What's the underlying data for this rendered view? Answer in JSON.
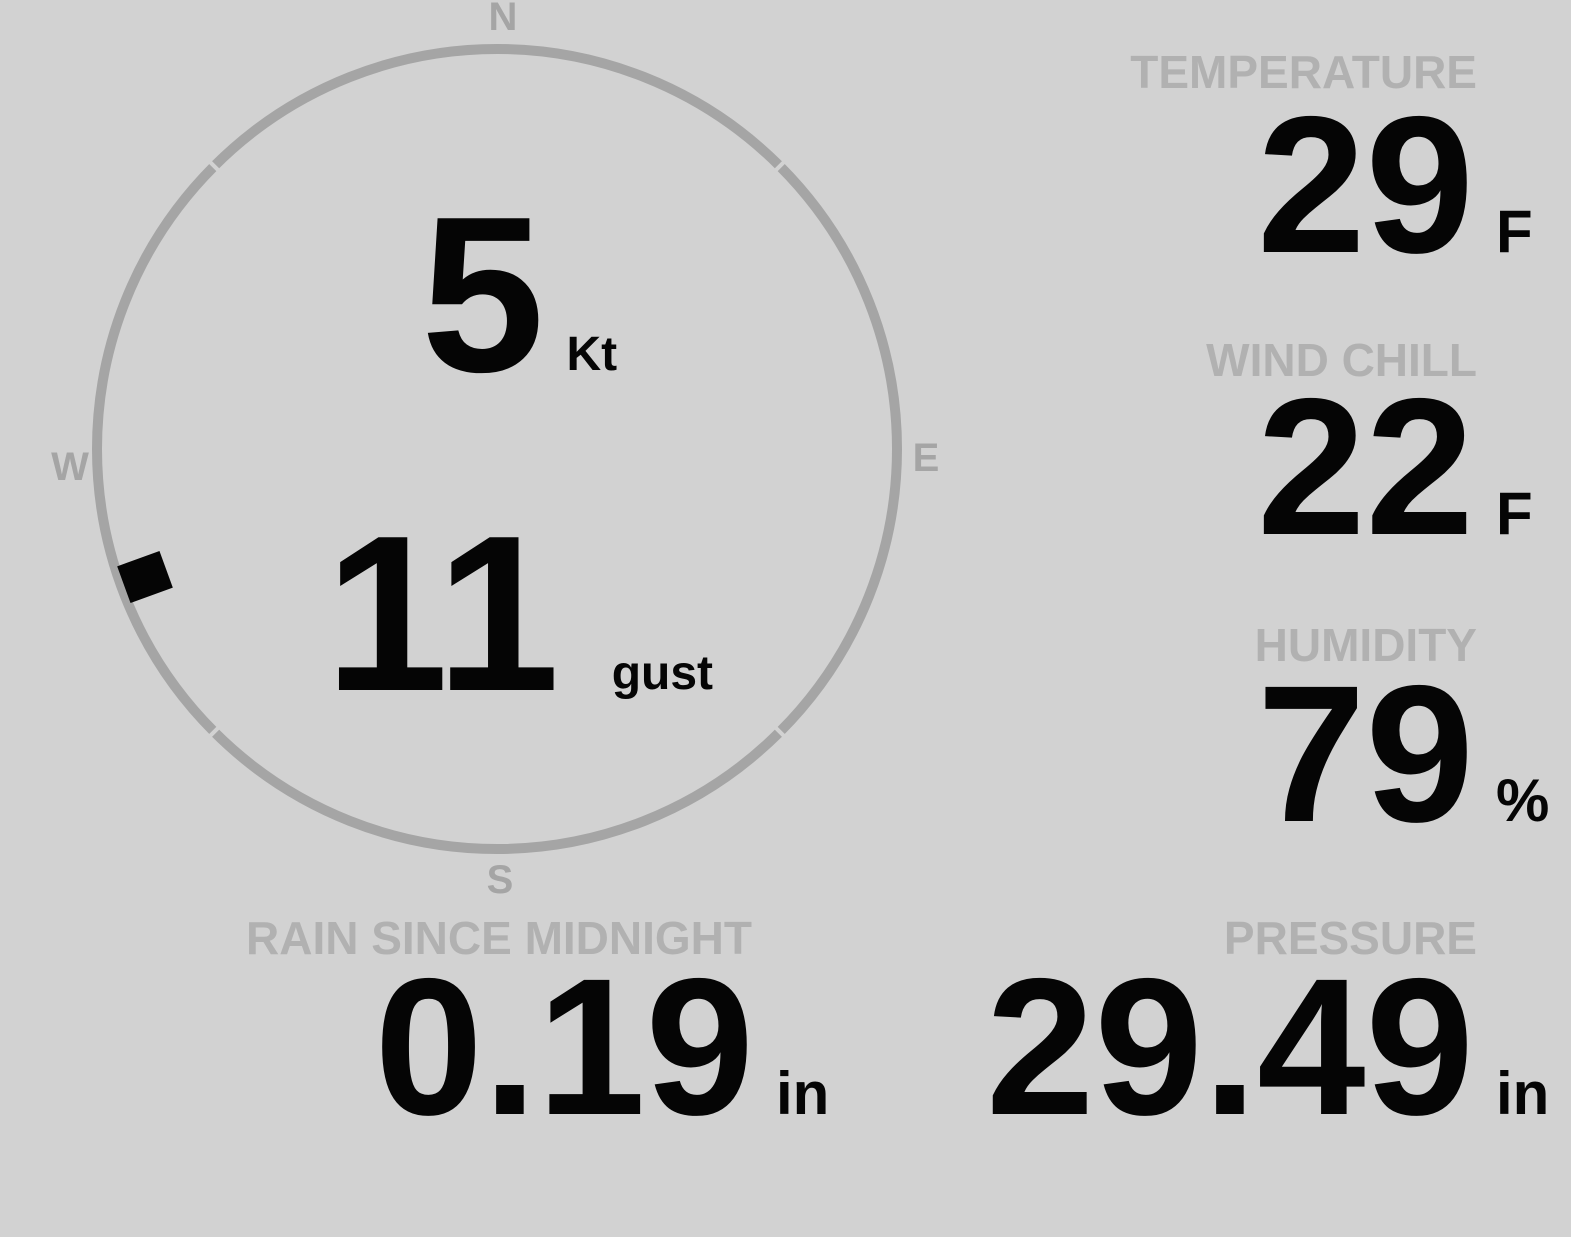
{
  "theme": {
    "background": "#d2d2d2",
    "dial_color": "#a5a5a5",
    "label_color": "#b1b1b1",
    "value_color": "#050505"
  },
  "compass": {
    "cardinals": {
      "north": "N",
      "east": "E",
      "south": "S",
      "west": "W"
    },
    "wind_speed": {
      "value": "5",
      "unit": "Kt"
    },
    "wind_gust": {
      "value": "11",
      "unit": "gust"
    },
    "direction_bearing_deg": 250
  },
  "metrics": {
    "temperature": {
      "label": "TEMPERATURE",
      "value": "29",
      "unit": "F"
    },
    "wind_chill": {
      "label": "WIND CHILL",
      "value": "22",
      "unit": "F"
    },
    "humidity": {
      "label": "HUMIDITY",
      "value": "79",
      "unit": "%"
    },
    "rain_since_midnight": {
      "label": "RAIN SINCE MIDNIGHT",
      "value": "0.19",
      "unit": "in"
    },
    "pressure": {
      "label": "PRESSURE",
      "value": "29.49",
      "unit": "in"
    }
  }
}
